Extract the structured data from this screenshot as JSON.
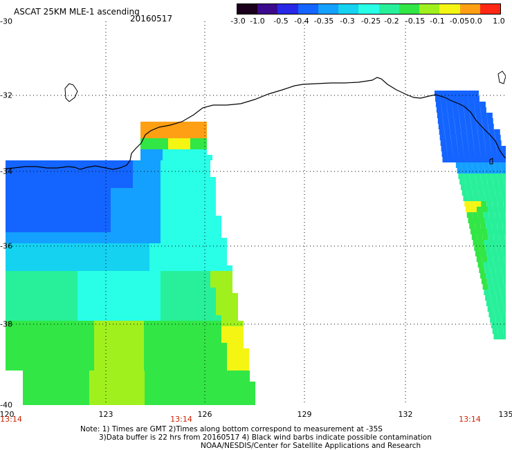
{
  "header": {
    "title": "ASCAT 25KM MLE-1 ascending",
    "date": "20160517"
  },
  "colorbar": {
    "labels": [
      "-3.0",
      "-1.0",
      "-0.5",
      "-0.4",
      "-0.35",
      "-0.3",
      "-0.25",
      "-0.2",
      "-0.15",
      "-0.1",
      "-0.05",
      "0.0",
      "1.0"
    ],
    "colors": [
      "#1a001a",
      "#3c0a8c",
      "#2828e6",
      "#1464ff",
      "#14a0ff",
      "#14d2f0",
      "#28ffe6",
      "#28f09a",
      "#32e646",
      "#a0f01e",
      "#f5f514",
      "#ffa014",
      "#ff2814"
    ]
  },
  "axes": {
    "lat_labels": [
      "-30",
      "-32",
      "-34",
      "-36",
      "-38",
      "-40"
    ],
    "lon_labels": [
      "120",
      "123",
      "126",
      "129",
      "132",
      "135"
    ]
  },
  "time_labels": [
    "13:14",
    "13:14",
    "13:14"
  ],
  "notes": [
    "Note: 1) Times are GMT 2)Times along bottom correspond to measurement at -35S",
    "3)Data buffer is 22 hrs from 20160517 4) Black wind barbs indicate possible contamination",
    "NOAA/NESDIS/Center for Satellite Applications and Research"
  ]
}
